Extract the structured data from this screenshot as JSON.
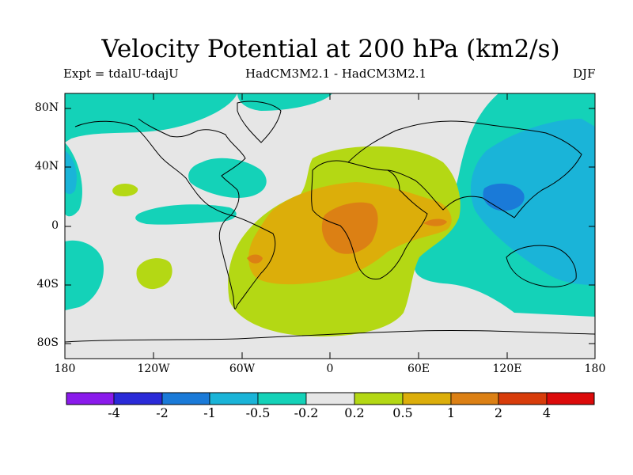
{
  "title": "Velocity Potential at 200 hPa (km2/s)",
  "subtitle_left": "Expt = tdalU-tdajU",
  "subtitle_center": "HadCM3M2.1 - HadCM3M2.1",
  "subtitle_right": "DJF",
  "lat_labels": [
    "80N",
    "40N",
    "0",
    "40S",
    "80S"
  ],
  "lon_labels": [
    "180",
    "120W",
    "60W",
    "0",
    "60E",
    "120E",
    "180"
  ],
  "colorbar": {
    "levels": [
      "-4",
      "-2",
      "-1",
      "-0.5",
      "-0.2",
      "0.2",
      "0.5",
      "1",
      "2",
      "4"
    ],
    "colors": [
      "#8a1aeb",
      "#2a2ad8",
      "#1a7ad8",
      "#1ab4d8",
      "#14d2b8",
      "#e6e6e6",
      "#b4d814",
      "#dcae0a",
      "#dc8014",
      "#d83c0a",
      "#dc0a0a"
    ]
  },
  "map_colors": {
    "ocean_bg": "#e6e6e6",
    "weak_neg": "#14d2b8",
    "mod_neg": "#1ab4d8",
    "strong_neg": "#1a7ad8",
    "weak_pos": "#b4d814",
    "mod_pos": "#dcae0a",
    "strong_pos": "#dc8014"
  }
}
